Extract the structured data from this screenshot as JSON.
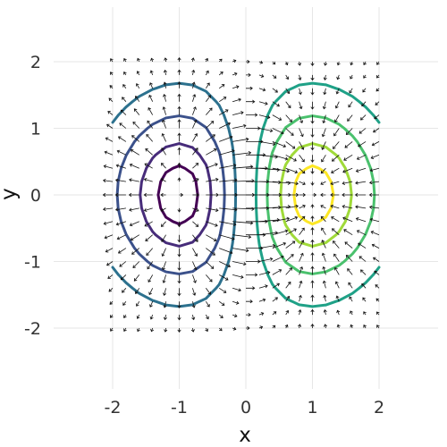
{
  "chart_data": {
    "type": "contour",
    "title": "",
    "xlabel": "x",
    "ylabel": "y",
    "xlim": [
      -2.8,
      2.8
    ],
    "ylim": [
      -2.8,
      2.8
    ],
    "xticks": [
      -2,
      -1,
      0,
      1,
      2
    ],
    "yticks": [
      -2,
      -1,
      0,
      1,
      2
    ],
    "xtick_labels": [
      "-2",
      "-1",
      "0",
      "1",
      "2"
    ],
    "ytick_labels": [
      "-2",
      "-1",
      "0",
      "1",
      "2"
    ],
    "grid": true,
    "function": "x * exp(-(x^2 + y^2)/2)",
    "domain": {
      "x": [
        -2,
        2
      ],
      "y": [
        -2,
        2
      ]
    },
    "contour_levels": [
      {
        "level": -0.55,
        "color": "#440154"
      },
      {
        "level": -0.45,
        "color": "#472c7a"
      },
      {
        "level": -0.3,
        "color": "#3b518b"
      },
      {
        "level": -0.15,
        "color": "#2c718e"
      },
      {
        "level": 0.15,
        "color": "#1fa187"
      },
      {
        "level": 0.3,
        "color": "#4ac16d"
      },
      {
        "level": 0.45,
        "color": "#a0da39"
      },
      {
        "level": 0.55,
        "color": "#fde725"
      }
    ],
    "quiver": {
      "field": "gradient",
      "x_start": -2,
      "x_end": 2,
      "y_start": -2,
      "y_end": 2,
      "step": 0.2,
      "color": "#111111"
    }
  }
}
